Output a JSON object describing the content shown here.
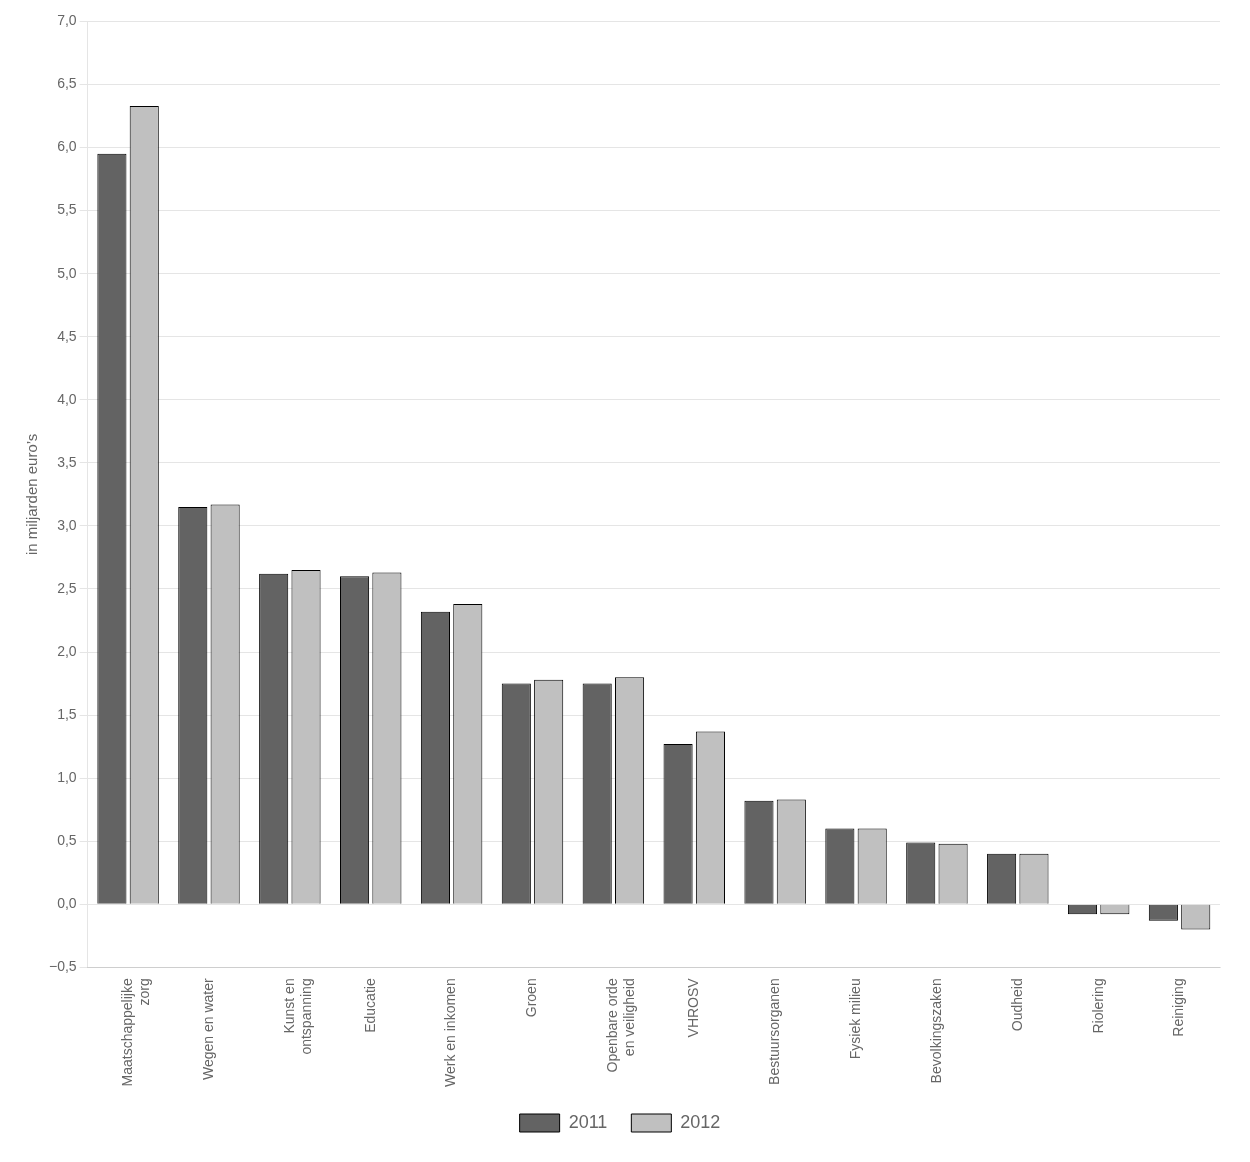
{
  "chart_data": {
    "type": "bar",
    "categories": [
      "Maatschappelijke\nzorg",
      "Wegen en water",
      "Kunst en\nontspanning",
      "Educatie",
      "Werk en inkomen",
      "Groen",
      "Openbare orde\nen veiligheid",
      "VHROSV",
      "Bestuursorganen",
      "Fysiek milieu",
      "Bevolkingszaken",
      "Oudheid",
      "Riolering",
      "Reiniging"
    ],
    "series": [
      {
        "name": "2011",
        "color": "#636363",
        "values": [
          5.95,
          3.15,
          2.62,
          2.6,
          2.32,
          1.75,
          1.75,
          1.27,
          0.82,
          0.6,
          0.49,
          0.4,
          -0.08,
          -0.13
        ]
      },
      {
        "name": "2012",
        "color": "#c0c0c0",
        "values": [
          6.33,
          3.17,
          2.65,
          2.63,
          2.38,
          1.78,
          1.8,
          1.37,
          0.83,
          0.6,
          0.48,
          0.4,
          -0.08,
          -0.2
        ]
      }
    ],
    "ylabel": "in miljarden euro’s",
    "ylim": [
      -0.5,
      7.0
    ],
    "yticks": [
      {
        "value": -0.5,
        "label": "−0,5"
      },
      {
        "value": 0.0,
        "label": "0,0"
      },
      {
        "value": 0.5,
        "label": "0,5"
      },
      {
        "value": 1.0,
        "label": "1,0"
      },
      {
        "value": 1.5,
        "label": "1,5"
      },
      {
        "value": 2.0,
        "label": "2,0"
      },
      {
        "value": 2.5,
        "label": "2,5"
      },
      {
        "value": 3.0,
        "label": "3,0"
      },
      {
        "value": 3.5,
        "label": "3,5"
      },
      {
        "value": 4.0,
        "label": "4,0"
      },
      {
        "value": 4.5,
        "label": "4,5"
      },
      {
        "value": 5.0,
        "label": "5,0"
      },
      {
        "value": 5.5,
        "label": "5,5"
      },
      {
        "value": 6.0,
        "label": "6,0"
      },
      {
        "value": 6.5,
        "label": "6,5"
      },
      {
        "value": 7.0,
        "label": "7,0"
      }
    ],
    "grid": true,
    "legend": "bottom"
  }
}
